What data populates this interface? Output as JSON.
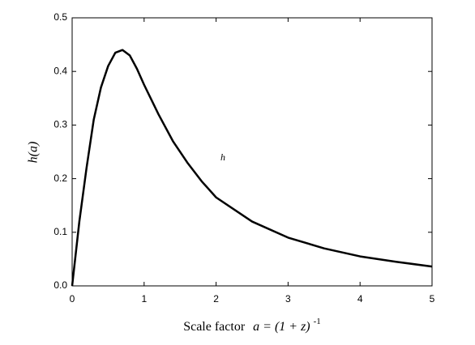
{
  "chart_data": {
    "type": "line",
    "y_label": "h(a)",
    "x_label": "Scale factor",
    "x_label_math": "a = (1 + z)",
    "x_label_exponent": "-1",
    "annotation": "h",
    "x": [
      0,
      0.1,
      0.2,
      0.3,
      0.4,
      0.5,
      0.6,
      0.7,
      0.8,
      0.9,
      1.0,
      1.2,
      1.4,
      1.6,
      1.8,
      2.0,
      2.5,
      3.0,
      3.5,
      4.0,
      4.5,
      5.0
    ],
    "series": [
      {
        "color": "#000000",
        "values": [
          0,
          0.12,
          0.22,
          0.31,
          0.37,
          0.41,
          0.435,
          0.44,
          0.43,
          0.405,
          0.375,
          0.32,
          0.27,
          0.23,
          0.195,
          0.165,
          0.12,
          0.09,
          0.07,
          0.055,
          0.045,
          0.036
        ]
      }
    ],
    "xlim": [
      0,
      5
    ],
    "xticks": [
      0,
      1,
      2,
      3,
      4,
      5
    ],
    "ylim": [
      0,
      0.5
    ],
    "yticks": [
      {
        "value": 0,
        "label": "0.0"
      },
      0.1,
      0.2,
      0.3,
      0.4,
      0.5
    ],
    "grid": false
  }
}
